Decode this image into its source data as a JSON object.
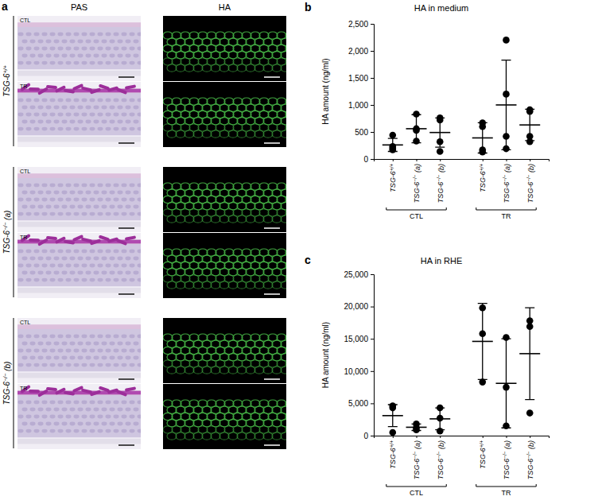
{
  "figure": {
    "panel_a": {
      "letter": "a",
      "columns": [
        "PAS",
        "HA"
      ],
      "conditions": [
        "CTL",
        "TR"
      ],
      "genotypes": [
        "TSG-6+/+",
        "TSG-6−/− (a)",
        "TSG-6−/− (b)"
      ]
    }
  },
  "chart_data": [
    {
      "type": "dot",
      "panel": "b",
      "title": "HA in medium",
      "y_label": "HA amount (ng/ml)",
      "categories": [
        "TSG-6+/+",
        "TSG-6−/− (a)",
        "TSG-6−/− (b)",
        "TSG-6+/+",
        "TSG-6−/− (a)",
        "TSG-6−/− (b)"
      ],
      "groups": [
        "CTL",
        "TR"
      ],
      "points": [
        [
          440,
          230,
          200,
          170
        ],
        [
          830,
          560,
          530,
          330
        ],
        [
          760,
          720,
          320,
          140
        ],
        [
          670,
          600,
          170,
          130
        ],
        [
          2200,
          1200,
          420,
          190
        ],
        [
          910,
          880,
          420,
          320
        ]
      ],
      "means": [
        260,
        560,
        490,
        390,
        1000,
        630
      ],
      "sd": [
        120,
        260,
        270,
        280,
        830,
        290
      ],
      "color": "#000000",
      "ylim": [
        0,
        2500
      ],
      "yticks": [
        0,
        500,
        {
          "value": 1000,
          "label": "1,000"
        },
        {
          "value": 1500,
          "label": "1,500"
        },
        {
          "value": 2000,
          "label": "2,000"
        },
        {
          "value": 2500,
          "label": "2,500"
        }
      ]
    },
    {
      "type": "dot",
      "panel": "c",
      "title": "HA in RHE",
      "y_label": "HA amount (ng/ml)",
      "categories": [
        "TSG-6+/+",
        "TSG-6−/− (a)",
        "TSG-6−/− (b)",
        "TSG-6+/+",
        "TSG-6−/− (a)",
        "TSG-6−/− (b)"
      ],
      "groups": [
        "CTL",
        "TR"
      ],
      "points": [
        [
          4600,
          4300,
          500
        ],
        [
          1800,
          1200,
          900
        ],
        [
          4300,
          2700,
          700
        ],
        [
          19800,
          15800,
          8300
        ],
        [
          15200,
          7500,
          1500
        ],
        [
          17800,
          16900,
          3500
        ]
      ],
      "means": [
        3100,
        1300,
        2600,
        14600,
        8100,
        12700
      ],
      "sd": [
        1700,
        500,
        1700,
        5900,
        6900,
        7100
      ],
      "color": "#000000",
      "ylim": [
        0,
        25000
      ],
      "yticks": [
        0,
        {
          "value": 5000,
          "label": "5,000"
        },
        {
          "value": 10000,
          "label": "10,000"
        },
        {
          "value": 15000,
          "label": "15,000"
        },
        {
          "value": 20000,
          "label": "20,000"
        },
        {
          "value": 25000,
          "label": "25,000"
        }
      ]
    }
  ]
}
